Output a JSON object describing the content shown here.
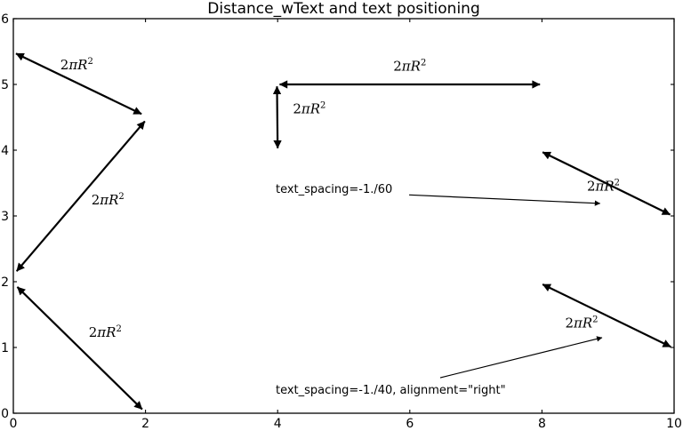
{
  "title": "Distance_wText and text positioning",
  "colors": {
    "foreground": "#000000",
    "background": "#ffffff"
  },
  "chart_data": {
    "type": "line",
    "title": "Distance_wText and text positioning",
    "xlabel": "",
    "ylabel": "",
    "xlim": [
      0,
      10
    ],
    "ylim": [
      0,
      6
    ],
    "xticks": [
      "0",
      "2",
      "4",
      "6",
      "8",
      "10"
    ],
    "xtick_values": [
      0,
      2,
      4,
      6,
      8,
      10
    ],
    "yticks": [
      "0",
      "1",
      "2",
      "3",
      "4",
      "5",
      "6"
    ],
    "ytick_values": [
      0,
      1,
      2,
      3,
      4,
      5,
      6
    ],
    "grid": false,
    "legend": null,
    "arrows": [
      {
        "x1": 0.04,
        "y1": 5.47,
        "x2": 1.94,
        "y2": 4.55,
        "double": true
      },
      {
        "x1": 1.99,
        "y1": 4.44,
        "x2": 0.05,
        "y2": 2.16,
        "double": true
      },
      {
        "x1": 0.06,
        "y1": 1.92,
        "x2": 1.95,
        "y2": 0.06,
        "double": true
      },
      {
        "x1": 4.03,
        "y1": 5.0,
        "x2": 7.97,
        "y2": 5.0,
        "double": true
      },
      {
        "x1": 3.99,
        "y1": 4.97,
        "x2": 4.0,
        "y2": 4.03,
        "double": true
      },
      {
        "x1": 8.01,
        "y1": 3.97,
        "x2": 9.94,
        "y2": 3.02,
        "double": true
      },
      {
        "x1": 8.01,
        "y1": 1.96,
        "x2": 9.95,
        "y2": 1.01,
        "double": true
      }
    ],
    "math_labels": [
      {
        "base": "2",
        "italic": "πR",
        "sup": "2",
        "x": 0.96,
        "y": 5.3
      },
      {
        "base": "2",
        "italic": "πR",
        "sup": "2",
        "x": 1.43,
        "y": 3.24
      },
      {
        "base": "2",
        "italic": "πR",
        "sup": "2",
        "x": 1.39,
        "y": 1.23
      },
      {
        "base": "2",
        "italic": "πR",
        "sup": "2",
        "x": 6.0,
        "y": 5.28
      },
      {
        "base": "2",
        "italic": "πR",
        "sup": "2",
        "x": 4.48,
        "y": 4.63
      },
      {
        "base": "2",
        "italic": "πR",
        "sup": "2",
        "x": 8.93,
        "y": 3.45
      },
      {
        "base": "2",
        "italic": "πR",
        "sup": "2",
        "x": 8.6,
        "y": 1.37
      }
    ],
    "annotations": [
      {
        "text": "text_spacing=-1./60",
        "tx": 3.97,
        "ty": 3.41,
        "ax1": 5.99,
        "ay1": 3.32,
        "ax2": 8.88,
        "ay2": 3.19
      },
      {
        "text": "text_spacing=-1./40, alignment=\"right\"",
        "tx": 3.97,
        "ty": 0.36,
        "ax1": 6.46,
        "ay1": 0.54,
        "ax2": 8.91,
        "ay2": 1.15
      }
    ]
  }
}
